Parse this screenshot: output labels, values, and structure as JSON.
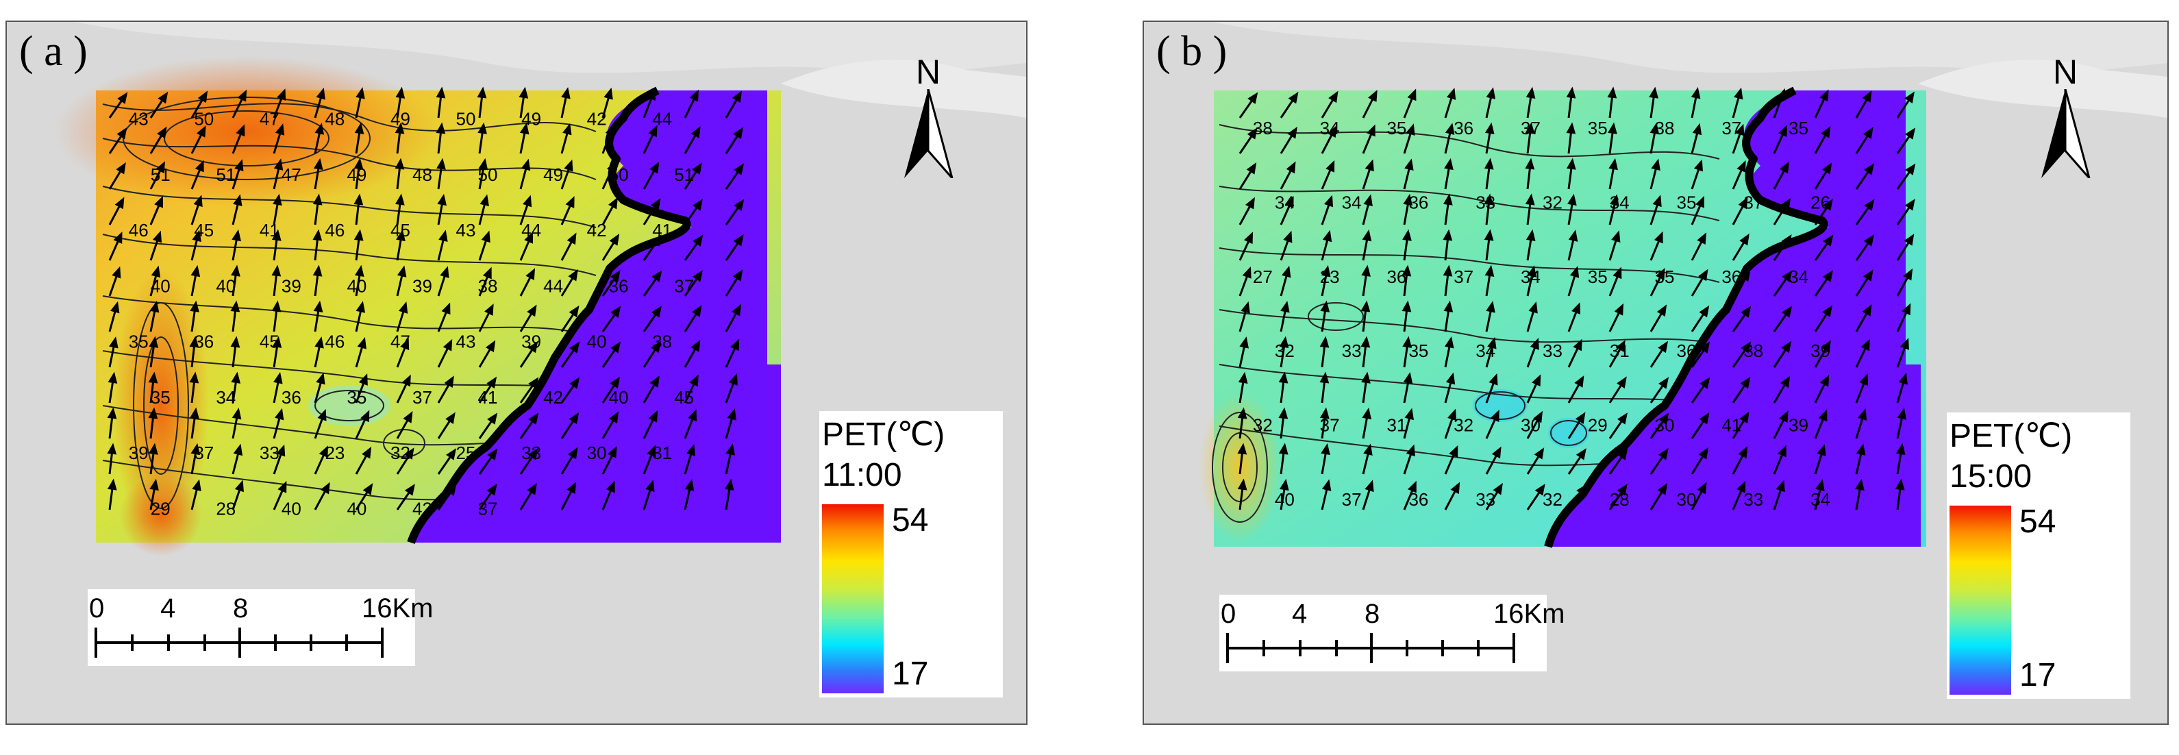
{
  "panels": [
    {
      "label": "( a )",
      "north": "N",
      "scale": {
        "ticks": [
          "0",
          "4",
          "8",
          "16Km"
        ]
      },
      "legend": {
        "title": "PET(℃)",
        "time": "11:00",
        "max": "54",
        "min": "17"
      },
      "contour_labels": [
        "43",
        "50",
        "47",
        "48",
        "49",
        "50",
        "49",
        "42",
        "44",
        "51",
        "51",
        "47",
        "49",
        "48",
        "50",
        "49",
        "50",
        "51",
        "46",
        "45",
        "41",
        "46",
        "45",
        "43",
        "44",
        "42",
        "41",
        "40",
        "40",
        "39",
        "40",
        "39",
        "38",
        "44",
        "36",
        "37",
        "35",
        "36",
        "45",
        "46",
        "47",
        "43",
        "39",
        "40",
        "38",
        "35",
        "34",
        "36",
        "35",
        "37",
        "41",
        "42",
        "40",
        "45",
        "39",
        "37",
        "33",
        "23",
        "32",
        "25",
        "33",
        "30",
        "31",
        "29",
        "28",
        "40",
        "40",
        "42",
        "37"
      ]
    },
    {
      "label": "( b )",
      "north": "N",
      "scale": {
        "ticks": [
          "0",
          "4",
          "8",
          "16Km"
        ]
      },
      "legend": {
        "title": "PET(℃)",
        "time": "15:00",
        "max": "54",
        "min": "17"
      },
      "contour_labels": [
        "38",
        "34",
        "35",
        "36",
        "37",
        "35",
        "38",
        "37",
        "35",
        "34",
        "34",
        "36",
        "33",
        "32",
        "34",
        "35",
        "37",
        "26",
        "27",
        "23",
        "36",
        "37",
        "34",
        "35",
        "35",
        "36",
        "34",
        "32",
        "33",
        "35",
        "34",
        "33",
        "31",
        "36",
        "38",
        "39",
        "32",
        "37",
        "31",
        "32",
        "30",
        "29",
        "30",
        "41",
        "39",
        "40",
        "37",
        "36",
        "33",
        "32",
        "28",
        "30",
        "33",
        "34"
      ]
    }
  ],
  "colors": {
    "sea": "#6a10ff",
    "land_bg": "#d9d9d9",
    "coast": "#000000"
  }
}
